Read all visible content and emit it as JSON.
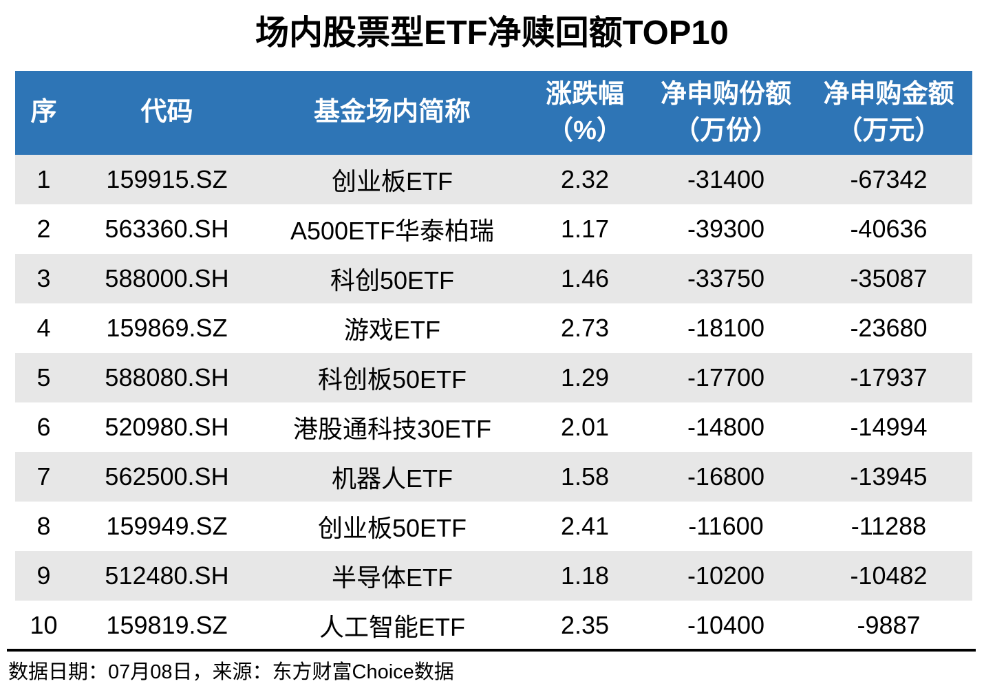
{
  "title": "场内股票型ETF净赎回额TOP10",
  "chart_data": {
    "type": "table",
    "title": "场内股票型ETF净赎回额TOP10",
    "columns": [
      "序",
      "代码",
      "基金场内简称",
      "涨跌幅（%）",
      "净申购份额（万份）",
      "净申购金额（万元）"
    ],
    "rows": [
      [
        1,
        "159915.SZ",
        "创业板ETF",
        2.32,
        -31400,
        -67342
      ],
      [
        2,
        "563360.SH",
        "A500ETF华泰柏瑞",
        1.17,
        -39300,
        -40636
      ],
      [
        3,
        "588000.SH",
        "科创50ETF",
        1.46,
        -33750,
        -35087
      ],
      [
        4,
        "159869.SZ",
        "游戏ETF",
        2.73,
        -18100,
        -23680
      ],
      [
        5,
        "588080.SH",
        "科创板50ETF",
        1.29,
        -17700,
        -17937
      ],
      [
        6,
        "520980.SH",
        "港股通科技30ETF",
        2.01,
        -14800,
        -14994
      ],
      [
        7,
        "562500.SH",
        "机器人ETF",
        1.58,
        -16800,
        -13945
      ],
      [
        8,
        "159949.SZ",
        "创业板50ETF",
        2.41,
        -11600,
        -11288
      ],
      [
        9,
        "512480.SH",
        "半导体ETF",
        1.18,
        -10200,
        -10482
      ],
      [
        10,
        "159819.SZ",
        "人工智能ETF",
        2.35,
        -10400,
        -9887
      ]
    ]
  },
  "table": {
    "headers": [
      [
        "序"
      ],
      [
        "代码"
      ],
      [
        "基金场内简称"
      ],
      [
        "涨跌幅",
        "（%）"
      ],
      [
        "净申购份额",
        "（万份）"
      ],
      [
        "净申购金额",
        "（万元）"
      ]
    ],
    "rows": [
      [
        "1",
        "159915.SZ",
        "创业板ETF",
        "2.32",
        "-31400",
        "-67342"
      ],
      [
        "2",
        "563360.SH",
        "A500ETF华泰柏瑞",
        "1.17",
        "-39300",
        "-40636"
      ],
      [
        "3",
        "588000.SH",
        "科创50ETF",
        "1.46",
        "-33750",
        "-35087"
      ],
      [
        "4",
        "159869.SZ",
        "游戏ETF",
        "2.73",
        "-18100",
        "-23680"
      ],
      [
        "5",
        "588080.SH",
        "科创板50ETF",
        "1.29",
        "-17700",
        "-17937"
      ],
      [
        "6",
        "520980.SH",
        "港股通科技30ETF",
        "2.01",
        "-14800",
        "-14994"
      ],
      [
        "7",
        "562500.SH",
        "机器人ETF",
        "1.58",
        "-16800",
        "-13945"
      ],
      [
        "8",
        "159949.SZ",
        "创业板50ETF",
        "2.41",
        "-11600",
        "-11288"
      ],
      [
        "9",
        "512480.SH",
        "半导体ETF",
        "1.18",
        "-10200",
        "-10482"
      ],
      [
        "10",
        "159819.SZ",
        "人工智能ETF",
        "2.35",
        "-10400",
        "-9887"
      ]
    ]
  },
  "footer": {
    "text": "数据日期：07月08日，来源：东方财富Choice数据"
  },
  "colors": {
    "header_bg": "#2E75B6",
    "header_text": "#FFFFFF",
    "row_alt_bg": "#E7E7E7",
    "row_bg": "#FFFFFF",
    "rule": "#000000"
  }
}
